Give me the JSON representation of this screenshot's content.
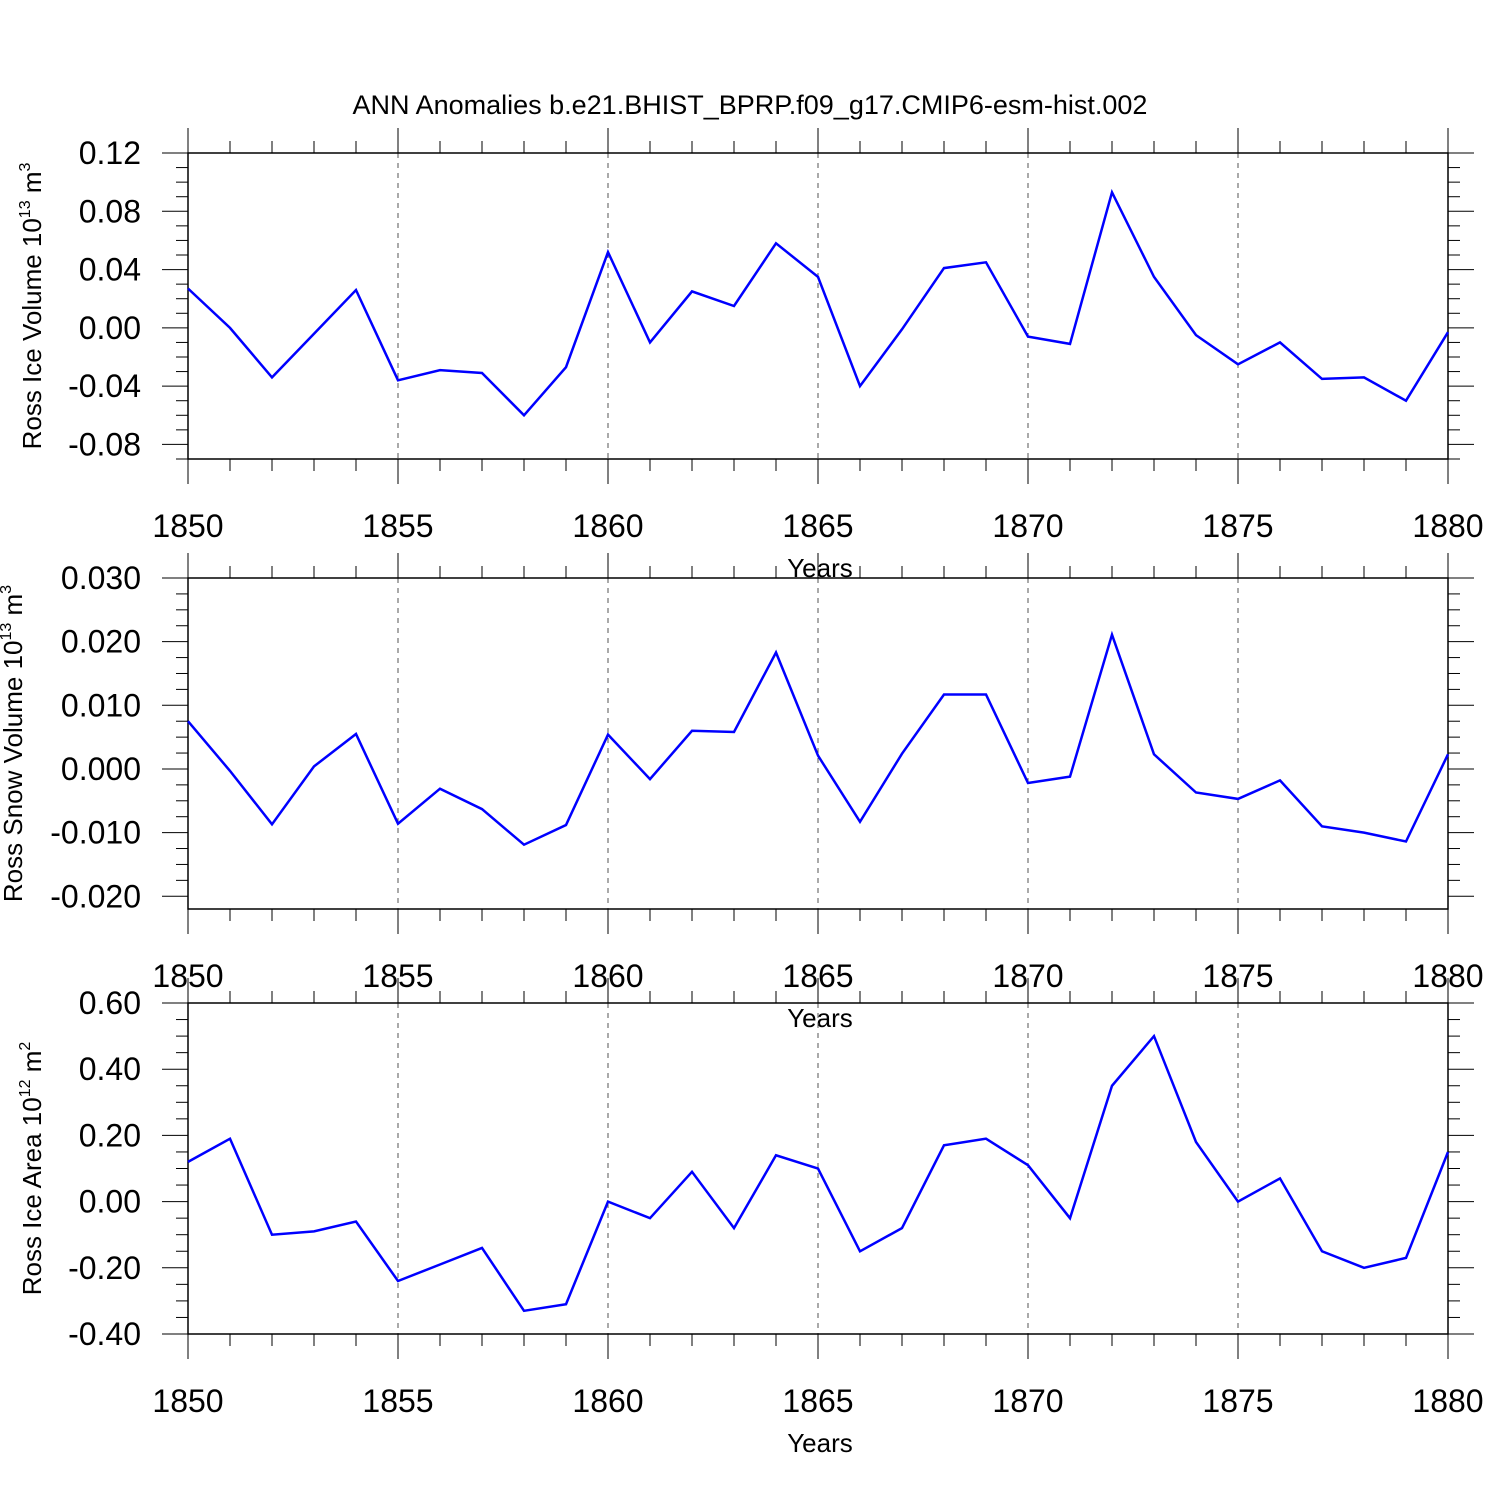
{
  "title": "ANN Anomalies b.e21.BHIST_BPRP.f09_g17.CMIP6-esm-hist.002",
  "line_color": "#0000ff",
  "chart_data": [
    {
      "type": "line",
      "xlabel": "Years",
      "ylabel": {
        "prefix": "Ross Ice Volume 10",
        "exp1": "13",
        "mid": " m",
        "exp2": "3"
      },
      "xlim": [
        1850,
        1880
      ],
      "ylim": [
        -0.09,
        0.12
      ],
      "xticks": [
        1850,
        1855,
        1860,
        1865,
        1870,
        1875,
        1880
      ],
      "xtick_labels": [
        "1850",
        "1855",
        "1860",
        "1865",
        "1870",
        "1875",
        "1880"
      ],
      "yticks": [
        0.12,
        0.08,
        0.04,
        0.0,
        -0.04,
        -0.08
      ],
      "ytick_labels": [
        "0.12",
        "0.08",
        "0.04",
        "0.00",
        "-0.04",
        "-0.08"
      ],
      "grid": "dashed vertical",
      "x": [
        1850,
        1851,
        1852,
        1853,
        1854,
        1855,
        1856,
        1857,
        1858,
        1859,
        1860,
        1861,
        1862,
        1863,
        1864,
        1865,
        1866,
        1867,
        1868,
        1869,
        1870,
        1871,
        1872,
        1873,
        1874,
        1875,
        1876,
        1877,
        1878,
        1879,
        1880
      ],
      "values": [
        0.027,
        0.0,
        -0.034,
        -0.004,
        0.026,
        -0.036,
        -0.029,
        -0.031,
        -0.06,
        -0.027,
        0.052,
        -0.01,
        0.025,
        0.015,
        0.058,
        0.035,
        -0.04,
        -0.001,
        0.041,
        0.045,
        -0.006,
        -0.011,
        0.093,
        0.035,
        -0.005,
        -0.025,
        -0.01,
        -0.035,
        -0.034,
        -0.05,
        -0.003
      ]
    },
    {
      "type": "line",
      "xlabel": "Years",
      "ylabel": {
        "prefix": "Ross Snow Volume 10",
        "exp1": "13",
        "mid": " m",
        "exp2": "3"
      },
      "xlim": [
        1850,
        1880
      ],
      "ylim": [
        -0.022,
        0.03
      ],
      "xticks": [
        1850,
        1855,
        1860,
        1865,
        1870,
        1875,
        1880
      ],
      "xtick_labels": [
        "1850",
        "1855",
        "1860",
        "1865",
        "1870",
        "1875",
        "1880"
      ],
      "yticks": [
        0.03,
        0.02,
        0.01,
        0.0,
        -0.01,
        -0.02
      ],
      "ytick_labels": [
        "0.030",
        "0.020",
        "0.010",
        "0.000",
        "-0.010",
        "-0.020"
      ],
      "grid": "dashed vertical",
      "x": [
        1850,
        1851,
        1852,
        1853,
        1854,
        1855,
        1856,
        1857,
        1858,
        1859,
        1860,
        1861,
        1862,
        1863,
        1864,
        1865,
        1866,
        1867,
        1868,
        1869,
        1870,
        1871,
        1872,
        1873,
        1874,
        1875,
        1876,
        1877,
        1878,
        1879,
        1880
      ],
      "values": [
        0.0075,
        -0.0003,
        -0.0087,
        0.0004,
        0.0055,
        -0.0086,
        -0.0031,
        -0.0063,
        -0.0119,
        -0.0088,
        0.0054,
        -0.0016,
        0.006,
        0.0058,
        0.0183,
        0.0021,
        -0.0083,
        0.0024,
        0.0117,
        0.0117,
        -0.0022,
        -0.0012,
        0.0211,
        0.0023,
        -0.0037,
        -0.0047,
        -0.0018,
        -0.009,
        -0.01,
        -0.0114,
        0.0023
      ]
    },
    {
      "type": "line",
      "xlabel": "Years",
      "ylabel": {
        "prefix": "Ross Ice Area 10",
        "exp1": "12",
        "mid": " m",
        "exp2": "2"
      },
      "xlim": [
        1850,
        1880
      ],
      "ylim": [
        -0.4,
        0.6
      ],
      "xticks": [
        1850,
        1855,
        1860,
        1865,
        1870,
        1875,
        1880
      ],
      "xtick_labels": [
        "1850",
        "1855",
        "1860",
        "1865",
        "1870",
        "1875",
        "1880"
      ],
      "yticks": [
        0.6,
        0.4,
        0.2,
        0.0,
        -0.2,
        -0.4
      ],
      "ytick_labels": [
        "0.60",
        "0.40",
        "0.20",
        "0.00",
        "-0.20",
        "-0.40"
      ],
      "grid": "dashed vertical",
      "x": [
        1850,
        1851,
        1852,
        1853,
        1854,
        1855,
        1856,
        1857,
        1858,
        1859,
        1860,
        1861,
        1862,
        1863,
        1864,
        1865,
        1866,
        1867,
        1868,
        1869,
        1870,
        1871,
        1872,
        1873,
        1874,
        1875,
        1876,
        1877,
        1878,
        1879,
        1880
      ],
      "values": [
        0.12,
        0.19,
        -0.1,
        -0.09,
        -0.06,
        -0.24,
        -0.19,
        -0.14,
        -0.33,
        -0.31,
        0.0,
        -0.05,
        0.09,
        -0.08,
        0.14,
        0.1,
        -0.15,
        -0.08,
        0.17,
        0.19,
        0.11,
        -0.05,
        0.35,
        0.5,
        0.18,
        0.0,
        0.07,
        -0.15,
        -0.2,
        -0.17,
        0.15
      ]
    }
  ]
}
